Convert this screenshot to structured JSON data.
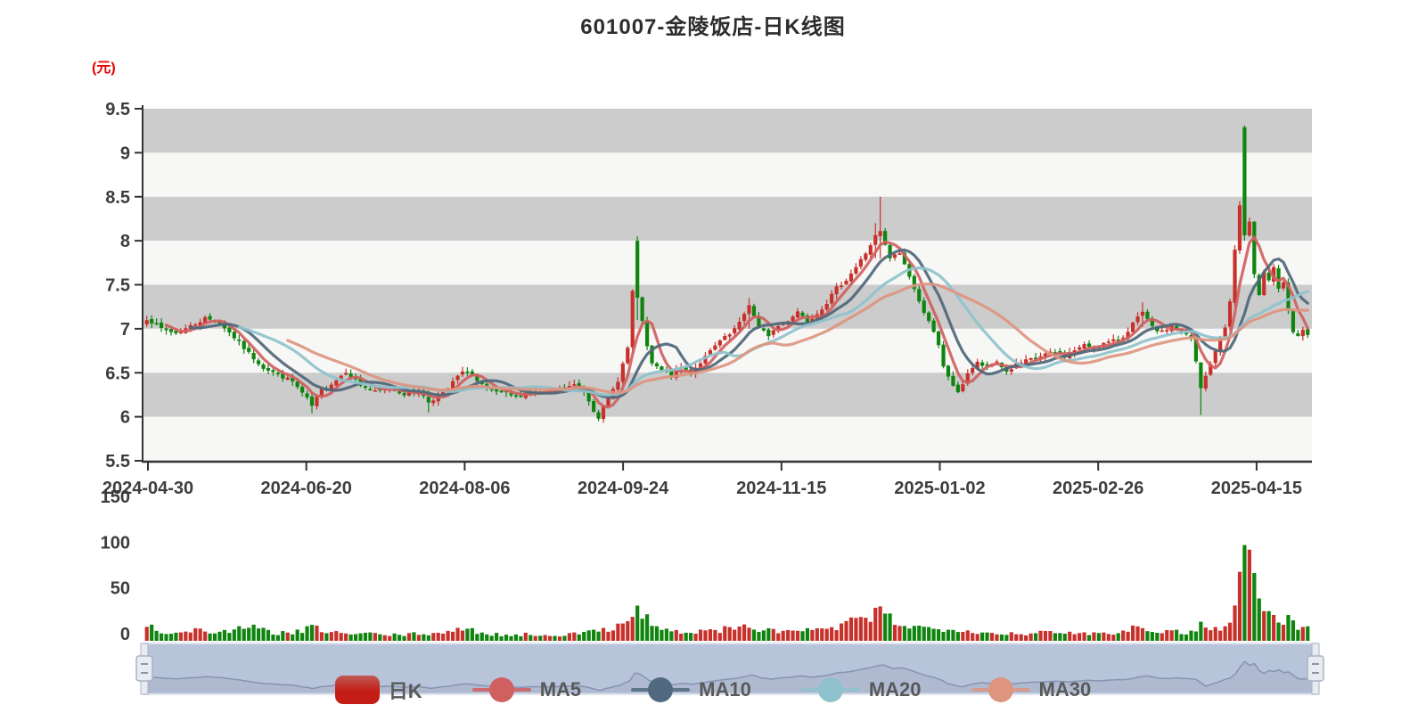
{
  "title": "601007-金陵饭店-日K线图",
  "chart_data": {
    "type": "candlestick",
    "title": "601007-金陵饭店-日K线图",
    "unit_label": "(元)",
    "price_axis": {
      "min": 5.5,
      "max": 9.5,
      "tick_step": 0.5,
      "tick_labels": [
        "9.5",
        "9",
        "8.5",
        "8",
        "7.5",
        "7",
        "6.5",
        "6",
        "5.5"
      ]
    },
    "volume_axis": {
      "min": 0,
      "max": 150,
      "tick_labels": [
        "150",
        "100",
        "50",
        "0"
      ]
    },
    "x_tick_labels": [
      "2024-04-30",
      "2024-06-20",
      "2024-08-06",
      "2024-09-24",
      "2024-11-15",
      "2025-01-02",
      "2025-02-26",
      "2025-04-15"
    ],
    "candle_count": 240,
    "price_range_observed": {
      "low": 5.95,
      "high": 9.31
    },
    "close_anchors": [
      [
        0,
        7.12
      ],
      [
        3,
        7.0
      ],
      [
        6,
        6.95
      ],
      [
        9,
        7.03
      ],
      [
        12,
        7.12
      ],
      [
        15,
        7.07
      ],
      [
        18,
        6.9
      ],
      [
        21,
        6.72
      ],
      [
        24,
        6.56
      ],
      [
        27,
        6.48
      ],
      [
        30,
        6.4
      ],
      [
        33,
        6.2
      ],
      [
        34,
        6.12
      ],
      [
        36,
        6.3
      ],
      [
        39,
        6.42
      ],
      [
        41,
        6.52
      ],
      [
        44,
        6.36
      ],
      [
        47,
        6.28
      ],
      [
        50,
        6.33
      ],
      [
        53,
        6.26
      ],
      [
        56,
        6.29
      ],
      [
        58,
        6.17
      ],
      [
        60,
        6.24
      ],
      [
        62,
        6.32
      ],
      [
        64,
        6.46
      ],
      [
        66,
        6.53
      ],
      [
        68,
        6.4
      ],
      [
        70,
        6.31
      ],
      [
        73,
        6.27
      ],
      [
        76,
        6.23
      ],
      [
        79,
        6.29
      ],
      [
        82,
        6.26
      ],
      [
        85,
        6.31
      ],
      [
        88,
        6.36
      ],
      [
        90,
        6.29
      ],
      [
        92,
        6.08
      ],
      [
        93,
        6.0
      ],
      [
        95,
        6.2
      ],
      [
        97,
        6.42
      ],
      [
        99,
        6.78
      ],
      [
        100,
        7.42
      ],
      [
        101,
        7.33
      ],
      [
        102,
        7.1
      ],
      [
        103,
        6.78
      ],
      [
        104,
        6.6
      ],
      [
        106,
        6.52
      ],
      [
        108,
        6.47
      ],
      [
        110,
        6.56
      ],
      [
        112,
        6.5
      ],
      [
        114,
        6.62
      ],
      [
        116,
        6.74
      ],
      [
        118,
        6.86
      ],
      [
        120,
        6.93
      ],
      [
        122,
        7.06
      ],
      [
        124,
        7.28
      ],
      [
        126,
        7.0
      ],
      [
        128,
        6.93
      ],
      [
        130,
        7.03
      ],
      [
        132,
        7.1
      ],
      [
        134,
        7.2
      ],
      [
        136,
        7.09
      ],
      [
        138,
        7.18
      ],
      [
        140,
        7.3
      ],
      [
        142,
        7.46
      ],
      [
        144,
        7.56
      ],
      [
        146,
        7.7
      ],
      [
        148,
        7.86
      ],
      [
        150,
        8.05
      ],
      [
        151,
        8.1
      ],
      [
        152,
        7.94
      ],
      [
        153,
        7.8
      ],
      [
        155,
        7.86
      ],
      [
        157,
        7.6
      ],
      [
        159,
        7.3
      ],
      [
        161,
        7.1
      ],
      [
        163,
        6.8
      ],
      [
        164,
        6.56
      ],
      [
        166,
        6.36
      ],
      [
        167,
        6.26
      ],
      [
        169,
        6.5
      ],
      [
        171,
        6.61
      ],
      [
        173,
        6.56
      ],
      [
        175,
        6.63
      ],
      [
        177,
        6.51
      ],
      [
        179,
        6.59
      ],
      [
        181,
        6.63
      ],
      [
        183,
        6.67
      ],
      [
        185,
        6.71
      ],
      [
        187,
        6.73
      ],
      [
        189,
        6.69
      ],
      [
        191,
        6.76
      ],
      [
        193,
        6.81
      ],
      [
        195,
        6.79
      ],
      [
        197,
        6.83
      ],
      [
        199,
        6.86
      ],
      [
        201,
        6.91
      ],
      [
        203,
        7.06
      ],
      [
        205,
        7.18
      ],
      [
        207,
        7.01
      ],
      [
        209,
        6.96
      ],
      [
        211,
        7.03
      ],
      [
        213,
        6.96
      ],
      [
        215,
        6.89
      ],
      [
        216,
        6.62
      ],
      [
        217,
        6.32
      ],
      [
        218,
        6.46
      ],
      [
        219,
        6.61
      ],
      [
        220,
        6.73
      ],
      [
        221,
        6.9
      ],
      [
        222,
        7.03
      ],
      [
        223,
        7.3
      ],
      [
        224,
        7.9
      ],
      [
        225,
        8.4
      ],
      [
        226,
        8.06
      ],
      [
        227,
        8.2
      ],
      [
        228,
        7.6
      ],
      [
        229,
        7.4
      ],
      [
        230,
        7.66
      ],
      [
        231,
        7.56
      ],
      [
        232,
        7.7
      ],
      [
        233,
        7.46
      ],
      [
        234,
        7.51
      ],
      [
        235,
        7.2
      ],
      [
        236,
        6.96
      ],
      [
        237,
        6.9
      ],
      [
        238,
        7.0
      ],
      [
        239,
        6.93
      ]
    ],
    "volume_anchors": [
      [
        0,
        18
      ],
      [
        3,
        10
      ],
      [
        6,
        8
      ],
      [
        10,
        12
      ],
      [
        14,
        9
      ],
      [
        18,
        12
      ],
      [
        22,
        14
      ],
      [
        26,
        9
      ],
      [
        30,
        8
      ],
      [
        34,
        14
      ],
      [
        38,
        10
      ],
      [
        42,
        7
      ],
      [
        46,
        8
      ],
      [
        50,
        6
      ],
      [
        54,
        7
      ],
      [
        58,
        8
      ],
      [
        62,
        10
      ],
      [
        66,
        12
      ],
      [
        70,
        8
      ],
      [
        74,
        6
      ],
      [
        78,
        7
      ],
      [
        82,
        6
      ],
      [
        86,
        7
      ],
      [
        90,
        8
      ],
      [
        93,
        12
      ],
      [
        96,
        15
      ],
      [
        98,
        22
      ],
      [
        100,
        30
      ],
      [
        101,
        33
      ],
      [
        103,
        25
      ],
      [
        105,
        15
      ],
      [
        108,
        10
      ],
      [
        112,
        9
      ],
      [
        116,
        11
      ],
      [
        120,
        13
      ],
      [
        124,
        16
      ],
      [
        126,
        12
      ],
      [
        130,
        10
      ],
      [
        134,
        12
      ],
      [
        138,
        11
      ],
      [
        142,
        15
      ],
      [
        145,
        20
      ],
      [
        148,
        24
      ],
      [
        150,
        28
      ],
      [
        151,
        35
      ],
      [
        152,
        30
      ],
      [
        154,
        22
      ],
      [
        157,
        16
      ],
      [
        160,
        14
      ],
      [
        163,
        13
      ],
      [
        166,
        15
      ],
      [
        169,
        11
      ],
      [
        172,
        9
      ],
      [
        176,
        8
      ],
      [
        180,
        8
      ],
      [
        184,
        9
      ],
      [
        188,
        8
      ],
      [
        192,
        9
      ],
      [
        196,
        8
      ],
      [
        200,
        10
      ],
      [
        203,
        14
      ],
      [
        205,
        16
      ],
      [
        208,
        11
      ],
      [
        211,
        10
      ],
      [
        214,
        9
      ],
      [
        216,
        14
      ],
      [
        217,
        18
      ],
      [
        219,
        12
      ],
      [
        221,
        14
      ],
      [
        223,
        20
      ],
      [
        224,
        45
      ],
      [
        225,
        65
      ],
      [
        226,
        110
      ],
      [
        227,
        88
      ],
      [
        228,
        68
      ],
      [
        229,
        48
      ],
      [
        230,
        45
      ],
      [
        231,
        38
      ],
      [
        232,
        25
      ],
      [
        233,
        20
      ],
      [
        234,
        18
      ],
      [
        235,
        25
      ],
      [
        236,
        20
      ],
      [
        237,
        15
      ],
      [
        239,
        14
      ]
    ],
    "open_overrides": {
      "101": 8.0,
      "226": 9.29
    },
    "wick_overrides": {
      "34": [
        6.28,
        6.04
      ],
      "58": [
        6.3,
        6.05
      ],
      "93": [
        6.08,
        5.95
      ],
      "100": [
        7.45,
        6.72
      ],
      "101": [
        8.05,
        7.1
      ],
      "124": [
        7.35,
        7.0
      ],
      "150": [
        8.2,
        7.8
      ],
      "151": [
        8.5,
        7.8
      ],
      "205": [
        7.3,
        7.02
      ],
      "217": [
        6.45,
        6.02
      ],
      "225": [
        8.45,
        7.85
      ],
      "226": [
        9.31,
        8.0
      ]
    },
    "moving_averages": [
      {
        "name": "MA5",
        "window": 5,
        "color": "#d05f5f"
      },
      {
        "name": "MA10",
        "window": 10,
        "color": "#4f6779"
      },
      {
        "name": "MA20",
        "window": 20,
        "color": "#8fc2cc"
      },
      {
        "name": "MA30",
        "window": 30,
        "color": "#dd9580"
      }
    ],
    "legend": [
      {
        "label": "日K",
        "type": "candle",
        "color": "#c5201b"
      },
      {
        "label": "MA5",
        "type": "line",
        "color": "#d05f5f"
      },
      {
        "label": "MA10",
        "type": "line",
        "color": "#51697e"
      },
      {
        "label": "MA20",
        "type": "line",
        "color": "#8fc2cc"
      },
      {
        "label": "MA30",
        "type": "line",
        "color": "#dd9580"
      }
    ],
    "colors": {
      "up": "#c8312b",
      "down": "#0f850f",
      "band_gray": "#cccccc",
      "band_light": "#f7f7f6",
      "axis_line": "#333333",
      "axis_text": "#3d3d3d",
      "slider_bg": "#b8c4da",
      "slider_line": "#8793b0",
      "slider_fill": "#a8b3cb",
      "slider_border": "#dfe3eb",
      "handle_fill": "#e8ebf2",
      "handle_stroke": "#aab2c4"
    },
    "grid": "alternating horizontal bands",
    "legend_position": "bottom-center"
  }
}
